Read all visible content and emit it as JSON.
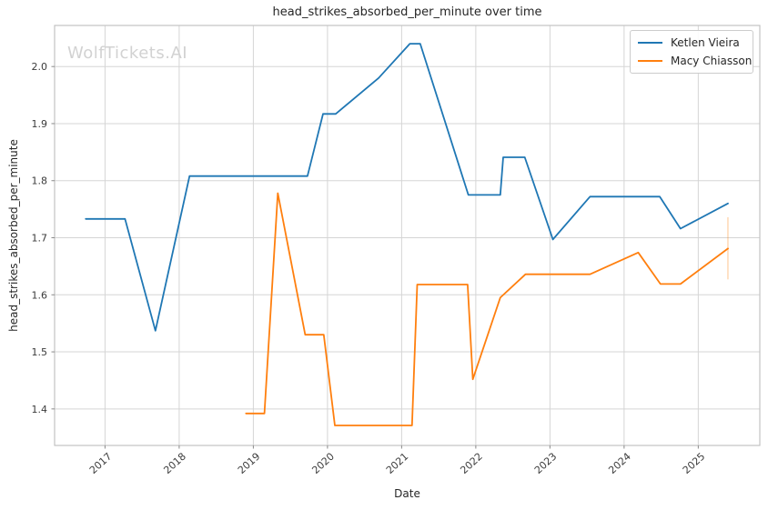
{
  "watermark": "WolfTickets.AI",
  "chart_data": {
    "type": "line",
    "title": "head_strikes_absorbed_per_minute over time",
    "xlabel": "Date",
    "ylabel": "head_strikes_absorbed_per_minute",
    "xlim": [
      2016.32,
      2025.83
    ],
    "ylim": [
      1.336,
      2.072
    ],
    "x_ticks": [
      2017,
      2018,
      2019,
      2020,
      2021,
      2022,
      2023,
      2024,
      2025
    ],
    "y_ticks": [
      1.4,
      1.5,
      1.6,
      1.7,
      1.8,
      1.9,
      2.0
    ],
    "grid": true,
    "legend_position": "upper right",
    "style": {
      "grid_color": "#d5d5d5",
      "spine_color": "#c3c3c3",
      "tick_color": "#8a8a8a",
      "tick_label_color": "#3b3b3b",
      "text_color": "#262626",
      "watermark_color": "#d2d2d2",
      "background": "#ffffff"
    },
    "series": [
      {
        "name": "Ketlen Vieira",
        "color": "#1f77b4",
        "points": [
          [
            2016.74,
            1.733
          ],
          [
            2017.27,
            1.733
          ],
          [
            2017.68,
            1.537
          ],
          [
            2018.14,
            1.808
          ],
          [
            2019.73,
            1.808
          ],
          [
            2019.94,
            1.917
          ],
          [
            2020.11,
            1.917
          ],
          [
            2020.69,
            1.98
          ],
          [
            2021.11,
            2.04
          ],
          [
            2021.25,
            2.04
          ],
          [
            2021.9,
            1.775
          ],
          [
            2022.33,
            1.775
          ],
          [
            2022.37,
            1.841
          ],
          [
            2022.66,
            1.841
          ],
          [
            2023.04,
            1.697
          ],
          [
            2023.54,
            1.772
          ],
          [
            2024.48,
            1.772
          ],
          [
            2024.76,
            1.716
          ],
          [
            2025.4,
            1.76
          ]
        ]
      },
      {
        "name": "Macy Chiasson",
        "color": "#ff7f0e",
        "points": [
          [
            2018.9,
            1.392
          ],
          [
            2019.15,
            1.392
          ],
          [
            2019.33,
            1.778
          ],
          [
            2019.7,
            1.53
          ],
          [
            2019.95,
            1.53
          ],
          [
            2020.1,
            1.371
          ],
          [
            2021.14,
            1.371
          ],
          [
            2021.21,
            1.618
          ],
          [
            2021.89,
            1.618
          ],
          [
            2021.96,
            1.452
          ],
          [
            2022.33,
            1.595
          ],
          [
            2022.67,
            1.636
          ],
          [
            2023.54,
            1.636
          ],
          [
            2024.19,
            1.674
          ],
          [
            2024.49,
            1.619
          ],
          [
            2024.76,
            1.619
          ],
          [
            2025.4,
            1.681
          ]
        ],
        "error_bar": {
          "x": 2025.4,
          "y_low": 1.627,
          "y_high": 1.736
        }
      }
    ]
  }
}
